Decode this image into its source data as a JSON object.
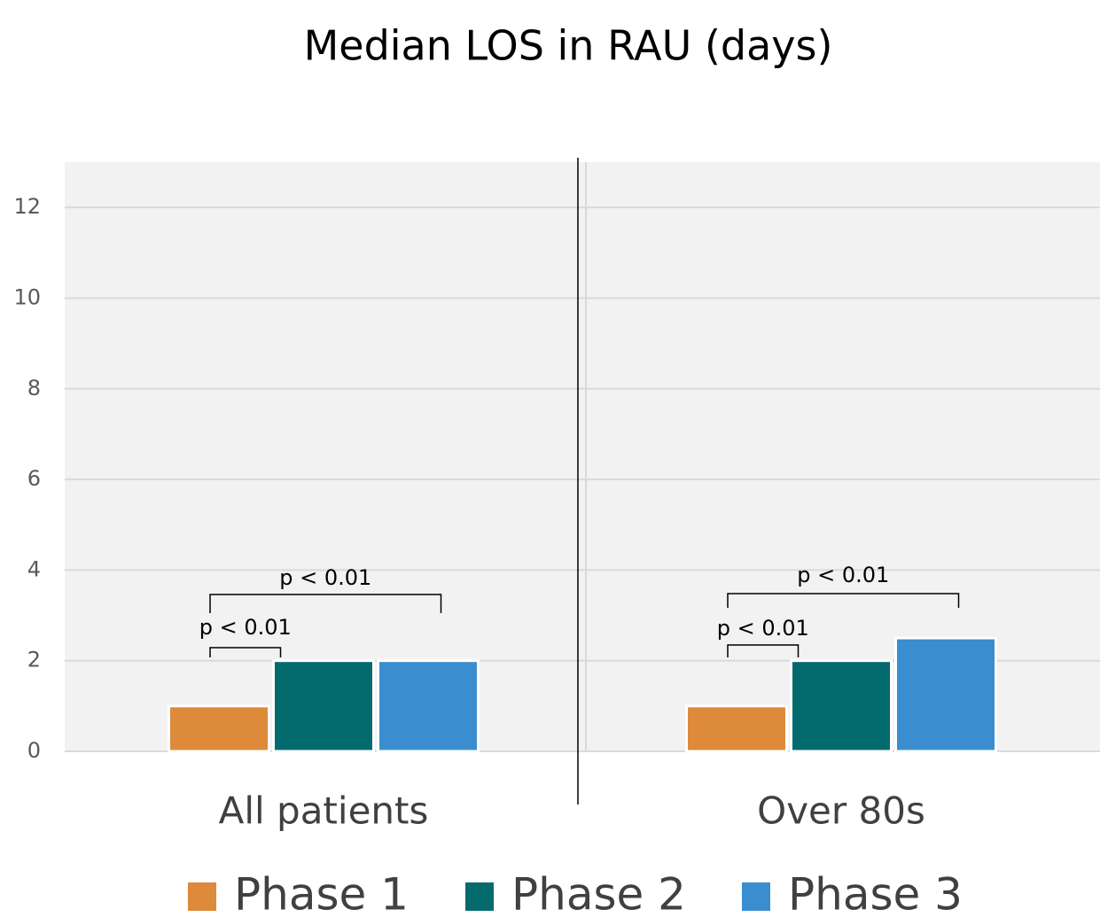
{
  "chart_data": {
    "type": "bar",
    "title": "Median LOS in RAU (days)",
    "categories": [
      "All patients",
      "Over 80s"
    ],
    "series": [
      {
        "name": "Phase 1",
        "color": "#dd8a3a",
        "values": [
          1,
          1
        ]
      },
      {
        "name": "Phase 2",
        "color": "#036b6e",
        "values": [
          2,
          2
        ]
      },
      {
        "name": "Phase 3",
        "color": "#3a8ecf",
        "values": [
          2,
          2.5
        ]
      }
    ],
    "ylim": [
      0,
      13
    ],
    "yticks": [
      0,
      2,
      4,
      6,
      8,
      10,
      12
    ],
    "grid": true,
    "legend": "bottom",
    "annotations": [
      "p < 0.01",
      "p < 0.01",
      "p < 0.01",
      "p < 0.01"
    ]
  }
}
